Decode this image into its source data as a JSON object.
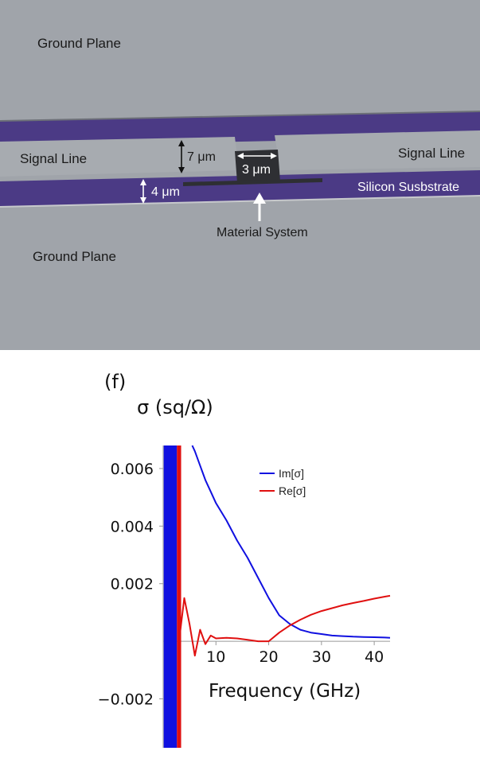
{
  "diagram": {
    "ground_plane_top": "Ground Plane",
    "ground_plane_bottom": "Ground Plane",
    "signal_line_left": "Signal Line",
    "signal_line_right": "Signal Line",
    "substrate_label": "Silicon Susbstrate",
    "material_label": "Material System",
    "dim_signal_width": "7 μm",
    "dim_gap": "3 μm",
    "dim_slot": "4 μm",
    "colors": {
      "ground": "#a0a4aa",
      "substrate": "#4b3a85",
      "signal": "#a7abb0",
      "material": "#2e2f33"
    }
  },
  "chart_data": {
    "type": "line",
    "panel_label": "(f)",
    "ylabel": "σ (sq/Ω)",
    "xlabel": "Frequency (GHz)",
    "xlim": [
      0,
      43
    ],
    "ylim": [
      -0.0037,
      0.0068
    ],
    "x_ticks": [
      10,
      20,
      30,
      40
    ],
    "y_ticks": [
      -0.002,
      0.002,
      0.004,
      0.006
    ],
    "y_tick_labels": [
      "−0.002",
      "0.002",
      "0.004",
      "0.006"
    ],
    "x_tick_labels": [
      "10",
      "20",
      "30",
      "40"
    ],
    "legend_position": "top-right",
    "series": [
      {
        "name": "Im[σ]",
        "color": "#1010e0",
        "x": [
          5.5,
          6,
          7,
          8,
          9,
          10,
          12,
          14,
          16,
          18,
          20,
          22,
          24,
          26,
          28,
          30,
          32,
          34,
          36,
          38,
          40,
          42,
          43
        ],
        "y": [
          0.0068,
          0.0066,
          0.0061,
          0.0056,
          0.0052,
          0.0048,
          0.0042,
          0.0035,
          0.0029,
          0.0022,
          0.0015,
          0.0009,
          0.0006,
          0.0004,
          0.0003,
          0.00025,
          0.0002,
          0.00018,
          0.00016,
          0.00015,
          0.00014,
          0.00013,
          0.00012
        ]
      },
      {
        "name": "Re[σ]",
        "color": "#e01010",
        "x": [
          3,
          4,
          5,
          6,
          7,
          8,
          9,
          10,
          12,
          14,
          16,
          18,
          20,
          22,
          24,
          26,
          28,
          30,
          32,
          34,
          36,
          38,
          40,
          42,
          43
        ],
        "y": [
          0.0,
          0.0015,
          0.0006,
          -0.0005,
          0.0004,
          -0.0001,
          0.0002,
          0.0001,
          0.00012,
          0.0001,
          5e-05,
          0.0,
          0.0,
          0.0003,
          0.00055,
          0.00075,
          0.00092,
          0.00105,
          0.00115,
          0.00125,
          0.00133,
          0.0014,
          0.00148,
          0.00155,
          0.00158
        ]
      }
    ]
  }
}
